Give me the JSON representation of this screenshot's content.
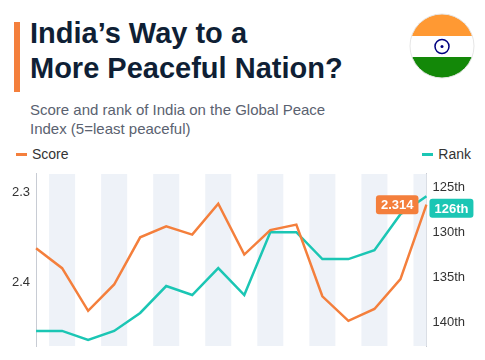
{
  "chart_data": {
    "type": "line",
    "title": "India’s Way to a More Peaceful Nation?",
    "subtitle": "Score and rank of India on the Global Peace Index (5=least peaceful)",
    "categories": [
      null,
      null,
      null,
      null,
      null,
      null,
      null,
      null,
      null,
      null,
      null,
      null,
      null,
      null,
      null,
      null
    ],
    "series": [
      {
        "name": "Score",
        "color": "#f47f3c",
        "axis": "y",
        "marker": "none",
        "line_style": "solid",
        "values": [
          2.362,
          2.384,
          2.431,
          2.402,
          2.35,
          2.338,
          2.347,
          2.313,
          2.369,
          2.342,
          2.336,
          2.415,
          2.442,
          2.429,
          2.396,
          2.314
        ],
        "value_labels": [
          null,
          null,
          null,
          null,
          null,
          null,
          null,
          null,
          null,
          null,
          null,
          null,
          null,
          null,
          null,
          "2.314"
        ]
      },
      {
        "name": "Rank",
        "color": "#1bc6b4",
        "axis": "y2",
        "marker": "none",
        "line_style": "solid",
        "values": [
          141,
          141,
          142,
          141,
          139,
          136,
          137,
          134,
          137,
          130,
          130,
          133,
          133,
          132,
          128,
          126
        ],
        "value_labels": [
          null,
          null,
          null,
          null,
          null,
          null,
          null,
          null,
          null,
          null,
          null,
          null,
          null,
          null,
          null,
          "126th"
        ]
      }
    ],
    "ylim": [
      2.47,
      2.28
    ],
    "yticks": [
      2.3,
      2.4
    ],
    "y2lim": [
      142.7,
      123.5
    ],
    "y2ticks": [
      {
        "value": 125,
        "label": "125th"
      },
      {
        "value": 130,
        "label": "130th"
      },
      {
        "value": 135,
        "label": "135th"
      },
      {
        "value": 140,
        "label": "140th"
      }
    ],
    "grid": false,
    "legend": "top",
    "tick_labels": "y"
  }
}
